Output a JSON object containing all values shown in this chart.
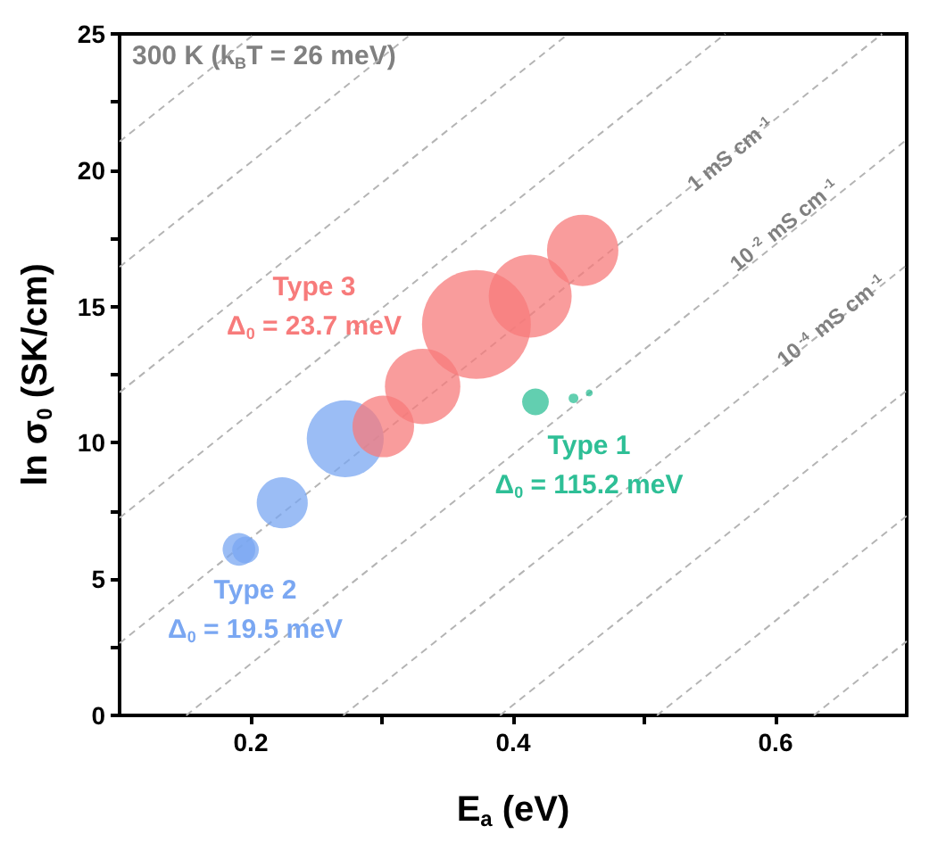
{
  "chart_data": {
    "type": "bubble",
    "xlabel": "E$_{a}$ (eV)",
    "ylabel": "ln σ$_{0}$ (SK/cm)",
    "xlim": [
      0.1,
      0.7
    ],
    "xticks": [
      {
        "value": 0.2,
        "label": "0.2"
      },
      {
        "value": 0.3,
        "label": null
      },
      {
        "value": 0.4,
        "label": "0.4"
      },
      {
        "value": 0.5,
        "label": null
      },
      {
        "value": 0.6,
        "label": "0.6"
      }
    ],
    "ylim": [
      0,
      25
    ],
    "yticks": [
      0,
      {
        "value": 2.5,
        "label": null
      },
      5,
      {
        "value": 7.5,
        "label": null
      },
      10,
      {
        "value": 12.5,
        "label": null
      },
      15,
      {
        "value": 17.5,
        "label": null
      },
      20,
      {
        "value": 22.5,
        "label": null
      },
      25
    ],
    "grid": false,
    "legend": false,
    "series": [
      {
        "name": "Type 2",
        "color": "#7aa7f2",
        "x": [
          0.191,
          0.196,
          0.224,
          0.272
        ],
        "values": [
          6.09,
          6.07,
          7.8,
          10.15
        ],
        "sizes": [
          0.09,
          0.06,
          0.22,
          0.5
        ]
      },
      {
        "name": "Type 3",
        "color": "#f77b7b",
        "x": [
          0.301,
          0.331,
          0.372,
          0.413,
          0.453
        ],
        "values": [
          10.6,
          12.07,
          14.34,
          15.38,
          17.06
        ],
        "sizes": [
          0.32,
          0.48,
          1,
          0.58,
          0.43
        ]
      },
      {
        "name": "Type 1",
        "color": "#2ebf96",
        "x": [
          0.417,
          0.446,
          0.458
        ],
        "values": [
          11.5,
          11.63,
          11.83
        ],
        "sizes": [
          0.06,
          0.008,
          0.004
        ]
      },
      {
        "type": "line",
        "color": "#b4b4b4",
        "line_style": "dashed",
        "marker": "none",
        "x": [
          0.1,
          0.2028
        ],
        "values": [
          21.05,
          25
        ]
      },
      {
        "type": "line",
        "color": "#b4b4b4",
        "line_style": "dashed",
        "marker": "none",
        "x": [
          0.1,
          0.3224
        ],
        "values": [
          16.45,
          25
        ]
      },
      {
        "type": "line",
        "color": "#b4b4b4",
        "line_style": "dashed",
        "marker": "none",
        "x": [
          0.1,
          0.442
        ],
        "values": [
          11.85,
          25
        ]
      },
      {
        "type": "line",
        "color": "#b4b4b4",
        "line_style": "dashed",
        "marker": "none",
        "x": [
          0.1,
          0.5616
        ],
        "values": [
          7.25,
          25
        ]
      },
      {
        "type": "line",
        "color": "#b4b4b4",
        "line_style": "dashed",
        "marker": "none",
        "x": [
          0.1,
          0.6812
        ],
        "values": [
          2.65,
          25
        ]
      },
      {
        "type": "line",
        "color": "#b4b4b4",
        "line_style": "dashed",
        "marker": "none",
        "x": [
          0.1508,
          0.7
        ],
        "values": [
          0,
          21.12
        ]
      },
      {
        "type": "line",
        "color": "#b4b4b4",
        "line_style": "dashed",
        "marker": "none",
        "x": [
          0.2704,
          0.7
        ],
        "values": [
          0,
          16.52
        ]
      },
      {
        "type": "line",
        "color": "#b4b4b4",
        "line_style": "dashed",
        "marker": "none",
        "x": [
          0.39,
          0.7
        ],
        "values": [
          0,
          11.92
        ]
      },
      {
        "type": "line",
        "color": "#b4b4b4",
        "line_style": "dashed",
        "marker": "none",
        "x": [
          0.5096,
          0.7
        ],
        "values": [
          0,
          7.32
        ]
      },
      {
        "type": "line",
        "color": "#b4b4b4",
        "line_style": "dashed",
        "marker": "none",
        "x": [
          0.6292,
          0.7
        ],
        "values": [
          0,
          2.72
        ]
      }
    ],
    "annotations": [
      "Δ$_{0}$ = 19.5 meV",
      "Δ$_{0}$ = 23.7 meV",
      "Δ$_{0}$ = 115.2 meV",
      "300 K (k$_{B}$T = 26 meV)",
      {
        "text": "1 mS cm$^{-1}$",
        "x": 0.566,
        "y": 20.6
      },
      {
        "text": "10$^{-2}$ mS cm$^{-1}$",
        "x": 0.607,
        "y": 18.0
      },
      {
        "text": "10$^{-4}$ mS cm$^{-1}$",
        "x": 0.643,
        "y": 14.5
      }
    ]
  }
}
